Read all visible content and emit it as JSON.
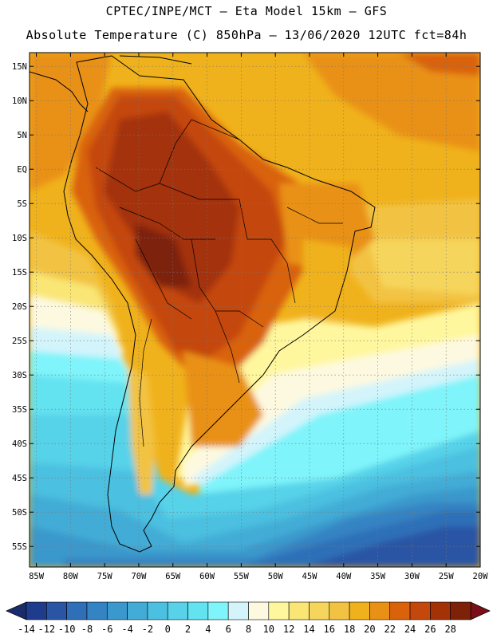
{
  "header": {
    "line1": "CPTEC/INPE/MCT –  Eta Model 15km – GFS",
    "line2": "Absolute Temperature (C) 850hPa – 13/06/2020 12UTC fct=84h"
  },
  "map": {
    "lat_range": [
      -58,
      17
    ],
    "lon_range": [
      -86,
      -20
    ],
    "lat_ticks": [
      "15N",
      "10N",
      "5N",
      "EQ",
      "5S",
      "10S",
      "15S",
      "20S",
      "25S",
      "30S",
      "35S",
      "40S",
      "45S",
      "50S",
      "55S"
    ],
    "lat_values": [
      15,
      10,
      5,
      0,
      -5,
      -10,
      -15,
      -20,
      -25,
      -30,
      -35,
      -40,
      -45,
      -50,
      -55
    ],
    "lon_ticks": [
      "85W",
      "80W",
      "75W",
      "70W",
      "65W",
      "60W",
      "55W",
      "50W",
      "45W",
      "40W",
      "35W",
      "30W",
      "25W",
      "20W"
    ],
    "lon_values": [
      -85,
      -80,
      -75,
      -70,
      -65,
      -60,
      -55,
      -50,
      -45,
      -40,
      -35,
      -30,
      -25,
      -20
    ]
  },
  "colorbar": {
    "labels": [
      "-14",
      "-12",
      "-10",
      "-8",
      "-6",
      "-4",
      "-2",
      "0",
      "2",
      "4",
      "6",
      "8",
      "10",
      "12",
      "14",
      "16",
      "18",
      "20",
      "22",
      "24",
      "26",
      "28"
    ],
    "colors": [
      "#1f3b8c",
      "#2a55a5",
      "#2f6fb8",
      "#3483c2",
      "#3a98cc",
      "#42acd6",
      "#4cc0e0",
      "#57d2e9",
      "#63e2f0",
      "#7ff4fa",
      "#d3f4fb",
      "#fdf9e0",
      "#fff79e",
      "#f9e675",
      "#f6d55c",
      "#f2c342",
      "#f0b21c",
      "#e99114",
      "#d9620b",
      "#c4470b",
      "#a33307",
      "#7d2108"
    ],
    "end_low_color": "#1a2b6b",
    "end_high_color": "#7a0d18"
  }
}
